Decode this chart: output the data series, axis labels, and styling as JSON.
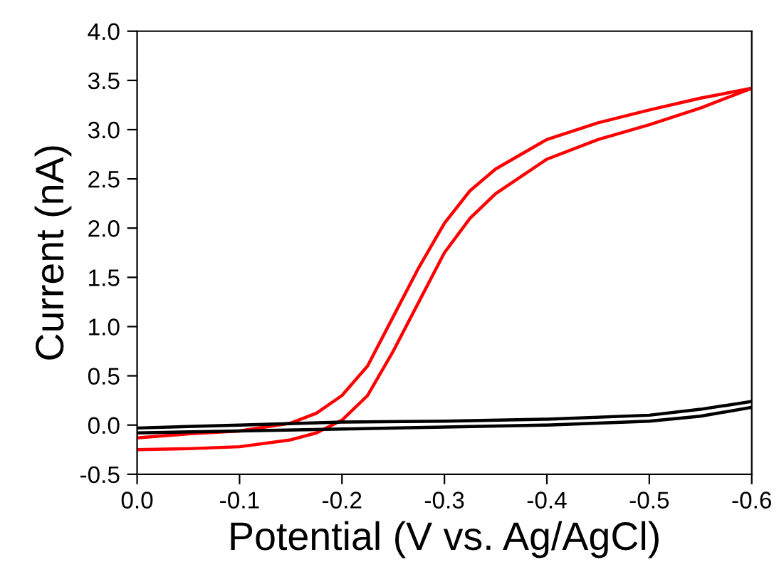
{
  "chart_data": {
    "type": "line",
    "xlabel": "Potential (V vs. Ag/AgCl)",
    "ylabel": "Current (nA)",
    "xlim": [
      0.0,
      -0.6
    ],
    "xticks": [
      {
        "value": 0,
        "label": "0.0"
      },
      {
        "value": -0.1,
        "label": "-0.1"
      },
      {
        "value": -0.2,
        "label": "-0.2"
      },
      {
        "value": -0.3,
        "label": "-0.3"
      },
      {
        "value": -0.4,
        "label": "-0.4"
      },
      {
        "value": -0.5,
        "label": "-0.5"
      },
      {
        "value": -0.6,
        "label": "-0.6"
      }
    ],
    "ylim": [
      -0.5,
      4.0
    ],
    "yticks": [
      {
        "value": -0.5,
        "label": "-0.5"
      },
      {
        "value": 0,
        "label": "0.0"
      },
      {
        "value": 0.5,
        "label": "0.5"
      },
      {
        "value": 1,
        "label": "1.0"
      },
      {
        "value": 1.5,
        "label": "1.5"
      },
      {
        "value": 2,
        "label": "2.0"
      },
      {
        "value": 2.5,
        "label": "2.5"
      },
      {
        "value": 3,
        "label": "3.0"
      },
      {
        "value": 3.5,
        "label": "3.5"
      },
      {
        "value": 4,
        "label": "4.0"
      }
    ],
    "grid": false,
    "legend": false,
    "marker": "none",
    "line_style": "solid",
    "series": [
      {
        "color": "#ff0000",
        "x": [
          0,
          -0.05,
          -0.1,
          -0.15,
          -0.175,
          -0.2,
          -0.225,
          -0.25,
          -0.275,
          -0.3,
          -0.325,
          -0.35,
          -0.4,
          -0.45,
          -0.5,
          -0.55,
          -0.6
        ],
        "values": [
          -0.13,
          -0.09,
          -0.06,
          0.02,
          0.12,
          0.3,
          0.6,
          1.1,
          1.6,
          2.05,
          2.38,
          2.6,
          2.9,
          3.07,
          3.2,
          3.32,
          3.42
        ]
      },
      {
        "color": "#ff0000",
        "x": [
          0,
          -0.05,
          -0.1,
          -0.15,
          -0.175,
          -0.2,
          -0.225,
          -0.25,
          -0.275,
          -0.3,
          -0.325,
          -0.35,
          -0.4,
          -0.45,
          -0.5,
          -0.55,
          -0.6
        ],
        "values": [
          -0.25,
          -0.24,
          -0.22,
          -0.15,
          -0.08,
          0.05,
          0.3,
          0.75,
          1.25,
          1.75,
          2.1,
          2.35,
          2.7,
          2.9,
          3.05,
          3.22,
          3.42
        ]
      },
      {
        "color": "#000000",
        "x": [
          0,
          -0.1,
          -0.2,
          -0.3,
          -0.4,
          -0.5,
          -0.55,
          -0.6
        ],
        "values": [
          -0.03,
          0.0,
          0.03,
          0.04,
          0.06,
          0.1,
          0.16,
          0.24
        ]
      },
      {
        "color": "#000000",
        "x": [
          0,
          -0.1,
          -0.2,
          -0.3,
          -0.4,
          -0.5,
          -0.55,
          -0.6
        ],
        "values": [
          -0.08,
          -0.06,
          -0.04,
          -0.02,
          0.0,
          0.04,
          0.09,
          0.18
        ]
      }
    ]
  }
}
